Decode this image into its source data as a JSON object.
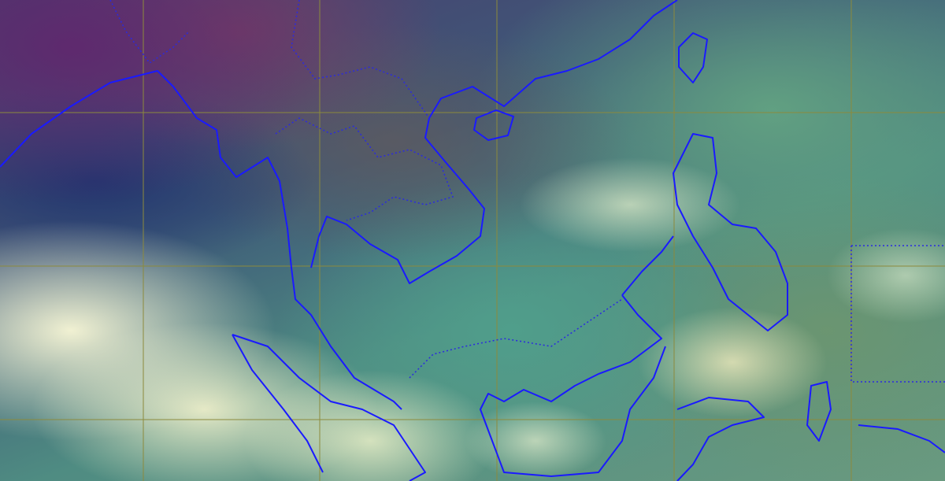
{
  "map": {
    "coastline_color": "#1a1aff",
    "border_color": "#2a2ae0",
    "grid_color": "#8c8a3c"
  }
}
